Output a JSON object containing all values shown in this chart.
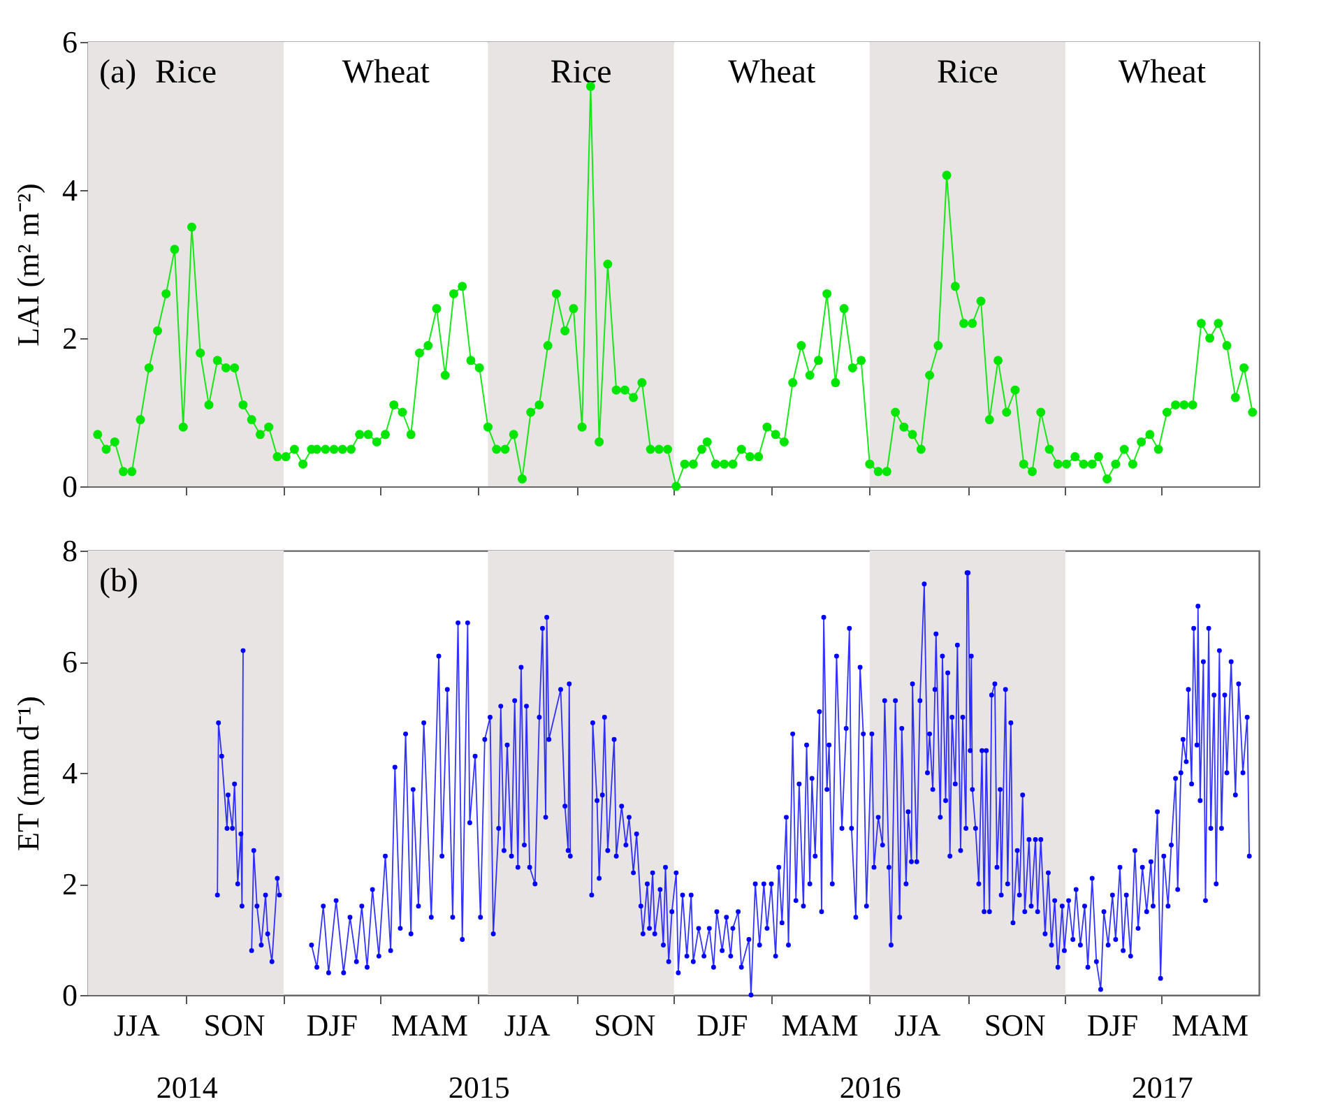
{
  "chart_data": [
    {
      "type": "line",
      "ylabel": "LAI (m² m⁻²)",
      "annotations": [
        "(a)"
      ],
      "xlim": [
        "2014-06-01",
        "2017-05-31"
      ],
      "ylim": [
        0,
        6
      ],
      "yticks": [
        0,
        2,
        4,
        6
      ],
      "tick_labels": "y",
      "marker": "circle",
      "xticks": [
        {
          "value": "2014-09-01",
          "label": null
        },
        {
          "value": "2014-12-01",
          "label": null
        },
        {
          "value": "2015-03-01",
          "label": null
        },
        {
          "value": "2015-06-01",
          "label": null
        },
        {
          "value": "2015-09-01",
          "label": null
        },
        {
          "value": "2015-12-01",
          "label": null
        },
        {
          "value": "2016-03-01",
          "label": null
        },
        {
          "value": "2016-06-01",
          "label": null
        },
        {
          "value": "2016-09-01",
          "label": null
        },
        {
          "value": "2016-12-01",
          "label": null
        },
        {
          "value": "2017-03-01",
          "label": null
        }
      ],
      "bands": [
        {
          "axis": "x",
          "from": "2014-06-01",
          "to": "2014-12-01",
          "label": "Rice",
          "color": "#e8e4e3"
        },
        {
          "axis": "x",
          "from": "2014-12-01",
          "to": "2015-06-10",
          "label": "Wheat",
          "color": "#ffffff"
        },
        {
          "axis": "x",
          "from": "2015-06-10",
          "to": "2015-12-01",
          "label": "Rice",
          "color": "#e8e4e3"
        },
        {
          "axis": "x",
          "from": "2015-12-01",
          "to": "2016-06-01",
          "label": "Wheat",
          "color": "#ffffff"
        },
        {
          "axis": "x",
          "from": "2016-06-01",
          "to": "2016-12-01",
          "label": "Rice",
          "color": "#e8e4e3"
        },
        {
          "axis": "x",
          "from": "2016-12-01",
          "to": "2017-05-31",
          "label": "Wheat",
          "color": "#ffffff"
        }
      ],
      "x": [
        "2014-06-10",
        "2014-06-18",
        "2014-06-26",
        "2014-07-04",
        "2014-07-12",
        "2014-07-20",
        "2014-07-28",
        "2014-08-05",
        "2014-08-13",
        "2014-08-21",
        "2014-08-29",
        "2014-09-06",
        "2014-09-14",
        "2014-09-22",
        "2014-09-30",
        "2014-10-08",
        "2014-10-16",
        "2014-10-24",
        "2014-11-01",
        "2014-11-09",
        "2014-11-17",
        "2014-11-25",
        "2014-12-03",
        "2014-12-11",
        "2014-12-19",
        "2014-12-27",
        "2015-01-01",
        "2015-01-09",
        "2015-01-17",
        "2015-01-25",
        "2015-02-02",
        "2015-02-10",
        "2015-02-18",
        "2015-02-26",
        "2015-03-06",
        "2015-03-14",
        "2015-03-22",
        "2015-03-30",
        "2015-04-07",
        "2015-04-15",
        "2015-04-23",
        "2015-05-01",
        "2015-05-09",
        "2015-05-17",
        "2015-05-25",
        "2015-06-02",
        "2015-06-10",
        "2015-06-18",
        "2015-06-26",
        "2015-07-04",
        "2015-07-12",
        "2015-07-20",
        "2015-07-28",
        "2015-08-05",
        "2015-08-13",
        "2015-08-21",
        "2015-08-29",
        "2015-09-06",
        "2015-09-14",
        "2015-09-22",
        "2015-09-30",
        "2015-10-08",
        "2015-10-16",
        "2015-10-24",
        "2015-11-01",
        "2015-11-09",
        "2015-11-17",
        "2015-11-25",
        "2015-12-03",
        "2015-12-11",
        "2015-12-19",
        "2015-12-27",
        "2016-01-01",
        "2016-01-09",
        "2016-01-17",
        "2016-01-25",
        "2016-02-02",
        "2016-02-10",
        "2016-02-18",
        "2016-02-26",
        "2016-03-05",
        "2016-03-13",
        "2016-03-21",
        "2016-03-29",
        "2016-04-06",
        "2016-04-14",
        "2016-04-22",
        "2016-04-30",
        "2016-05-08",
        "2016-05-16",
        "2016-05-24",
        "2016-06-01",
        "2016-06-09",
        "2016-06-17",
        "2016-06-25",
        "2016-07-03",
        "2016-07-11",
        "2016-07-19",
        "2016-07-27",
        "2016-08-04",
        "2016-08-12",
        "2016-08-20",
        "2016-08-28",
        "2016-09-05",
        "2016-09-13",
        "2016-09-21",
        "2016-09-29",
        "2016-10-07",
        "2016-10-15",
        "2016-10-23",
        "2016-10-31",
        "2016-11-08",
        "2016-11-16",
        "2016-11-24",
        "2016-12-02",
        "2016-12-10",
        "2016-12-18",
        "2016-12-26",
        "2017-01-01",
        "2017-01-09",
        "2017-01-17",
        "2017-01-25",
        "2017-02-02",
        "2017-02-10",
        "2017-02-18",
        "2017-02-26",
        "2017-03-06",
        "2017-03-14",
        "2017-03-22",
        "2017-03-30",
        "2017-04-07",
        "2017-04-15",
        "2017-04-23",
        "2017-05-01",
        "2017-05-09",
        "2017-05-17",
        "2017-05-25"
      ],
      "series": [
        {
          "color": "#00e600",
          "values": [
            0.7,
            0.5,
            0.6,
            0.2,
            0.2,
            0.9,
            1.6,
            2.1,
            2.6,
            3.2,
            0.8,
            3.5,
            1.8,
            1.1,
            1.7,
            1.6,
            1.6,
            1.1,
            0.9,
            0.7,
            0.8,
            0.4,
            0.4,
            0.5,
            0.3,
            0.5,
            0.5,
            0.5,
            0.5,
            0.5,
            0.5,
            0.7,
            0.7,
            0.6,
            0.7,
            1.1,
            1.0,
            0.7,
            1.8,
            1.9,
            2.4,
            1.5,
            2.6,
            2.7,
            1.7,
            1.6,
            0.8,
            0.5,
            0.5,
            0.7,
            0.1,
            1.0,
            1.1,
            1.9,
            2.6,
            2.1,
            2.4,
            0.8,
            5.4,
            0.6,
            3.0,
            1.3,
            1.3,
            1.2,
            1.4,
            0.5,
            0.5,
            0.5,
            0.0,
            0.3,
            0.3,
            0.5,
            0.6,
            0.3,
            0.3,
            0.3,
            0.5,
            0.4,
            0.4,
            0.8,
            0.7,
            0.6,
            1.4,
            1.9,
            1.5,
            1.7,
            2.6,
            1.4,
            2.4,
            1.6,
            1.7,
            0.3,
            0.2,
            0.2,
            1.0,
            0.8,
            0.7,
            0.5,
            1.5,
            1.9,
            4.2,
            2.7,
            2.2,
            2.2,
            2.5,
            0.9,
            1.7,
            1.0,
            1.3,
            0.3,
            0.2,
            1.0,
            0.5,
            0.3,
            0.3,
            0.4,
            0.3,
            0.3,
            0.4,
            0.1,
            0.3,
            0.5,
            0.3,
            0.6,
            0.7,
            0.5,
            1.0,
            1.1,
            1.1,
            1.1,
            2.2,
            2.0,
            2.2,
            1.9,
            1.2,
            1.6,
            1.0
          ]
        }
      ]
    },
    {
      "type": "line",
      "ylabel": "ET (mm d⁻¹)",
      "annotations": [
        "(b)",
        "JJA",
        "SON",
        "DJF",
        "MAM",
        "JJA",
        "SON",
        "DJF",
        "MAM",
        "JJA",
        "SON",
        "DJF",
        "MAM"
      ],
      "xlim": [
        "2014-06-01",
        "2017-05-31"
      ],
      "ylim": [
        0,
        8
      ],
      "yticks": [
        0,
        2,
        4,
        6,
        8
      ],
      "marker": "circle",
      "xticks": [
        {
          "value": "2014-09-01",
          "label": "2014"
        },
        {
          "value": "2014-12-01",
          "label": null
        },
        {
          "value": "2015-03-01",
          "label": null
        },
        {
          "value": "2015-06-01",
          "label": "2015"
        },
        {
          "value": "2015-09-01",
          "label": null
        },
        {
          "value": "2015-12-01",
          "label": null
        },
        {
          "value": "2016-03-01",
          "label": null
        },
        {
          "value": "2016-06-01",
          "label": "2016"
        },
        {
          "value": "2016-09-01",
          "label": null
        },
        {
          "value": "2016-12-01",
          "label": null
        },
        {
          "value": "2017-03-01",
          "label": "2017"
        }
      ],
      "bands": [
        {
          "axis": "x",
          "from": "2014-06-01",
          "to": "2014-12-01",
          "color": "#e8e4e3"
        },
        {
          "axis": "x",
          "from": "2015-06-10",
          "to": "2015-12-01",
          "color": "#e8e4e3"
        },
        {
          "axis": "x",
          "from": "2016-06-01",
          "to": "2016-12-01",
          "color": "#e8e4e3"
        }
      ],
      "x": [
        "2014-09-30",
        "2014-10-01",
        "2014-10-04",
        "2014-10-09",
        "2014-10-10",
        "2014-10-14",
        "2014-10-16",
        "2014-10-19",
        "2014-10-22",
        "2014-10-23",
        "2014-10-24",
        "2014-10-28",
        "2014-11-01",
        "2014-11-03",
        "2014-11-06",
        "2014-11-10",
        "2014-11-14",
        "2014-11-16",
        "2014-11-20",
        "2014-11-25",
        "2014-11-27",
        "2014-12-10",
        "2014-12-27",
        "2015-01-01",
        "2015-01-07",
        "2015-01-12",
        "2015-01-19",
        "2015-01-26",
        "2015-02-01",
        "2015-02-07",
        "2015-02-12",
        "2015-02-17",
        "2015-02-22",
        "2015-02-28",
        "2015-03-06",
        "2015-03-11",
        "2015-03-15",
        "2015-03-20",
        "2015-03-25",
        "2015-03-30",
        "2015-04-01",
        "2015-04-06",
        "2015-04-11",
        "2015-04-18",
        "2015-04-25",
        "2015-04-28",
        "2015-05-03",
        "2015-05-08",
        "2015-05-13",
        "2015-05-17",
        "2015-05-22",
        "2015-05-24",
        "2015-05-29",
        "2015-06-03",
        "2015-06-07",
        "2015-06-12",
        "2015-06-15",
        "2015-06-20",
        "2015-06-22",
        "2015-06-25",
        "2015-06-28",
        "2015-07-02",
        "2015-07-05",
        "2015-07-08",
        "2015-07-11",
        "2015-07-14",
        "2015-07-16",
        "2015-07-19",
        "2015-07-24",
        "2015-07-28",
        "2015-07-31",
        "2015-08-03",
        "2015-08-04",
        "2015-08-06",
        "2015-08-17",
        "2015-08-21",
        "2015-08-24",
        "2015-08-25",
        "2015-08-26",
        "2015-09-05",
        "2015-09-15",
        "2015-09-16",
        "2015-09-20",
        "2015-09-22",
        "2015-09-25",
        "2015-09-27",
        "2015-09-30",
        "2015-10-06",
        "2015-10-08",
        "2015-10-13",
        "2015-10-17",
        "2015-10-20",
        "2015-10-24",
        "2015-10-27",
        "2015-10-31",
        "2015-11-02",
        "2015-11-06",
        "2015-11-08",
        "2015-11-11",
        "2015-11-13",
        "2015-11-18",
        "2015-11-21",
        "2015-11-23",
        "2015-11-26",
        "2015-11-29",
        "2015-12-03",
        "2015-12-05",
        "2015-12-09",
        "2015-12-13",
        "2015-12-17",
        "2015-12-19",
        "2015-12-24",
        "2015-12-29",
        "2016-01-03",
        "2016-01-07",
        "2016-01-10",
        "2016-01-15",
        "2016-01-19",
        "2016-01-23",
        "2016-01-25",
        "2016-01-30",
        "2016-02-02",
        "2016-02-09",
        "2016-02-11",
        "2016-02-15",
        "2016-02-19",
        "2016-02-23",
        "2016-02-26",
        "2016-03-01",
        "2016-03-05",
        "2016-03-08",
        "2016-03-11",
        "2016-03-15",
        "2016-03-17",
        "2016-03-21",
        "2016-03-24",
        "2016-03-27",
        "2016-03-31",
        "2016-04-03",
        "2016-04-06",
        "2016-04-08",
        "2016-04-11",
        "2016-04-15",
        "2016-04-17",
        "2016-04-19",
        "2016-04-22",
        "2016-04-24",
        "2016-04-27",
        "2016-05-01",
        "2016-05-06",
        "2016-05-10",
        "2016-05-13",
        "2016-05-15",
        "2016-05-19",
        "2016-05-23",
        "2016-05-26",
        "2016-05-29",
        "2016-06-03",
        "2016-06-05",
        "2016-06-09",
        "2016-06-13",
        "2016-06-15",
        "2016-06-19",
        "2016-06-21",
        "2016-06-25",
        "2016-06-29",
        "2016-07-01",
        "2016-07-05",
        "2016-07-07",
        "2016-07-10",
        "2016-07-11",
        "2016-07-15",
        "2016-07-18",
        "2016-07-22",
        "2016-07-25",
        "2016-07-27",
        "2016-07-30",
        "2016-08-01",
        "2016-08-02",
        "2016-08-06",
        "2016-08-08",
        "2016-08-11",
        "2016-08-13",
        "2016-08-15",
        "2016-08-17",
        "2016-08-20",
        "2016-08-22",
        "2016-08-25",
        "2016-08-27",
        "2016-08-30",
        "2016-08-31",
        "2016-09-01",
        "2016-09-03",
        "2016-09-04",
        "2016-09-05",
        "2016-09-08",
        "2016-09-11",
        "2016-09-14",
        "2016-09-16",
        "2016-09-18",
        "2016-09-21",
        "2016-09-23",
        "2016-09-26",
        "2016-09-28",
        "2016-10-01",
        "2016-10-02",
        "2016-10-06",
        "2016-10-08",
        "2016-10-11",
        "2016-10-13",
        "2016-10-17",
        "2016-10-19",
        "2016-10-22",
        "2016-10-24",
        "2016-10-28",
        "2016-10-30",
        "2016-11-03",
        "2016-11-05",
        "2016-11-08",
        "2016-11-12",
        "2016-11-15",
        "2016-11-18",
        "2016-11-21",
        "2016-11-24",
        "2016-11-28",
        "2016-11-30",
        "2016-12-04",
        "2016-12-08",
        "2016-12-11",
        "2016-12-15",
        "2016-12-19",
        "2016-12-22",
        "2016-12-26",
        "2016-12-30",
        "2017-01-03",
        "2017-01-06",
        "2017-01-10",
        "2017-01-14",
        "2017-01-17",
        "2017-01-21",
        "2017-01-24",
        "2017-01-27",
        "2017-01-31",
        "2017-02-04",
        "2017-02-07",
        "2017-02-11",
        "2017-02-15",
        "2017-02-19",
        "2017-02-21",
        "2017-02-25",
        "2017-02-28",
        "2017-03-03",
        "2017-03-07",
        "2017-03-10",
        "2017-03-14",
        "2017-03-16",
        "2017-03-19",
        "2017-03-21",
        "2017-03-24",
        "2017-03-26",
        "2017-03-29",
        "2017-03-31",
        "2017-04-03",
        "2017-04-04",
        "2017-04-06",
        "2017-04-09",
        "2017-04-11",
        "2017-04-14",
        "2017-04-16",
        "2017-04-19",
        "2017-04-21",
        "2017-04-24",
        "2017-04-26",
        "2017-04-29",
        "2017-05-01",
        "2017-05-05",
        "2017-05-09",
        "2017-05-12",
        "2017-05-16",
        "2017-05-20",
        "2017-05-22"
      ],
      "series": [
        {
          "color": "#0000ff",
          "values": [
            1.8,
            4.9,
            4.3,
            3.0,
            3.6,
            3.0,
            3.8,
            2.0,
            2.9,
            1.6,
            6.2,
            null,
            0.8,
            2.6,
            1.6,
            0.9,
            1.8,
            1.1,
            0.6,
            2.1,
            1.8,
            null,
            0.9,
            0.5,
            1.6,
            0.4,
            1.7,
            0.4,
            1.4,
            0.6,
            1.6,
            0.5,
            1.9,
            0.7,
            2.5,
            0.8,
            4.1,
            1.2,
            4.7,
            1.1,
            3.7,
            1.6,
            4.9,
            1.4,
            6.1,
            2.5,
            5.5,
            1.4,
            6.7,
            1.0,
            6.7,
            3.1,
            4.3,
            1.4,
            4.6,
            5.0,
            1.1,
            3.0,
            5.2,
            2.6,
            4.5,
            2.5,
            5.3,
            2.3,
            5.9,
            2.7,
            5.2,
            2.3,
            2.0,
            5.0,
            6.6,
            3.2,
            6.8,
            4.6,
            5.5,
            3.4,
            2.6,
            5.6,
            2.5,
            null,
            1.8,
            4.9,
            3.5,
            2.1,
            3.6,
            5.0,
            2.6,
            4.6,
            2.5,
            3.4,
            2.7,
            3.2,
            2.2,
            2.9,
            1.6,
            1.1,
            2.0,
            1.2,
            2.2,
            1.1,
            1.9,
            0.9,
            2.3,
            0.6,
            1.5,
            2.2,
            0.4,
            1.8,
            0.7,
            1.8,
            0.6,
            1.2,
            0.7,
            1.2,
            0.5,
            1.5,
            0.8,
            1.4,
            0.7,
            1.2,
            1.5,
            0.5,
            1.0,
            0.0,
            2.0,
            0.9,
            2.0,
            1.2,
            2.0,
            0.7,
            2.3,
            1.3,
            3.2,
            0.9,
            4.7,
            1.7,
            3.8,
            1.6,
            4.5,
            2.0,
            3.9,
            2.5,
            5.1,
            1.5,
            6.8,
            3.7,
            4.5,
            2.0,
            6.1,
            3.0,
            4.8,
            6.6,
            3.0,
            1.4,
            5.9,
            4.7,
            1.6,
            4.7,
            2.3,
            3.2,
            2.7,
            5.3,
            2.3,
            0.9,
            5.3,
            1.4,
            4.8,
            2.0,
            3.3,
            2.4,
            5.6,
            2.4,
            5.3,
            7.4,
            4.0,
            4.7,
            3.7,
            5.5,
            6.5,
            3.2,
            6.1,
            3.5,
            5.8,
            2.5,
            5.0,
            3.8,
            6.3,
            2.6,
            5.0,
            3.0,
            7.6,
            7.6,
            4.4,
            6.1,
            3.7,
            3.0,
            2.0,
            4.4,
            1.5,
            4.4,
            1.5,
            5.4,
            5.6,
            2.3,
            3.7,
            1.8,
            5.5,
            2.0,
            4.9,
            1.3,
            2.6,
            1.8,
            3.6,
            1.5,
            2.8,
            1.6,
            2.8,
            1.5,
            2.8,
            1.1,
            2.2,
            0.9,
            1.7,
            0.5,
            1.6,
            0.8,
            1.7,
            1.0,
            1.9,
            0.9,
            1.6,
            0.5,
            2.1,
            0.6,
            0.1,
            1.5,
            0.9,
            1.8,
            1.0,
            2.3,
            0.8,
            1.8,
            0.7,
            2.6,
            1.2,
            2.3,
            1.5,
            2.4,
            1.6,
            3.3,
            0.3,
            2.5,
            1.6,
            2.7,
            3.9,
            1.9,
            4.0,
            4.6,
            4.2,
            5.5,
            3.8,
            6.6,
            4.5,
            7.0,
            3.5,
            6.0,
            1.7,
            6.6,
            3.0,
            5.4,
            2.0,
            6.2,
            3.0,
            5.4,
            4.0,
            6.0,
            3.6,
            5.6,
            4.0,
            5.0,
            2.5
          ]
        }
      ]
    }
  ]
}
